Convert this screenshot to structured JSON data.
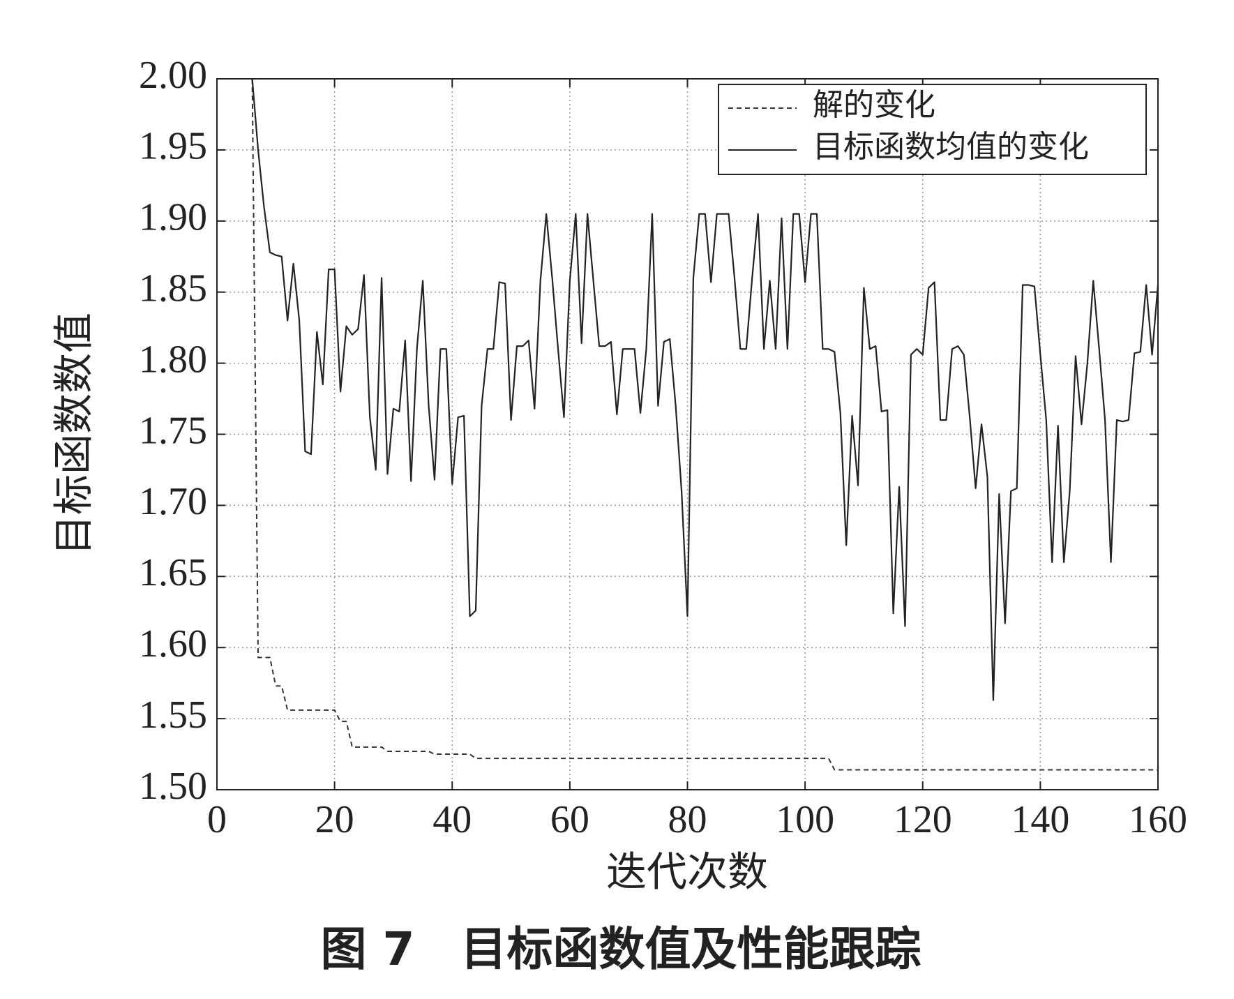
{
  "chart_data": {
    "type": "line",
    "caption": "图 7　目标函数值及性能跟踪",
    "x_label": "迭代次数",
    "y_label": "目标函数数值",
    "xlim": [
      0,
      160
    ],
    "xticks": [
      0,
      20,
      40,
      60,
      80,
      100,
      120,
      140,
      160
    ],
    "ylim": [
      1.5,
      2.0
    ],
    "yticks": [
      {
        "value": 1.5,
        "label": "1.50"
      },
      {
        "value": 1.55,
        "label": "1.55"
      },
      {
        "value": 1.6,
        "label": "1.60"
      },
      {
        "value": 1.65,
        "label": "1.65"
      },
      {
        "value": 1.7,
        "label": "1.70"
      },
      {
        "value": 1.75,
        "label": "1.75"
      },
      {
        "value": 1.8,
        "label": "1.80"
      },
      {
        "value": 1.85,
        "label": "1.85"
      },
      {
        "value": 1.9,
        "label": "1.90"
      },
      {
        "value": 1.95,
        "label": "1.95"
      },
      {
        "value": 2.0,
        "label": "2.00"
      }
    ],
    "grid": true,
    "legend": "top-right",
    "series": [
      {
        "name": "解的变化",
        "color": "#333333",
        "style": "dashed",
        "x": [
          6,
          7,
          9,
          10,
          11,
          12,
          20,
          21,
          22,
          23,
          28,
          29,
          36,
          37,
          43,
          44,
          104,
          105,
          160
        ],
        "values": [
          2.0,
          1.593,
          1.593,
          1.573,
          1.573,
          1.556,
          1.556,
          1.548,
          1.548,
          1.53,
          1.53,
          1.527,
          1.527,
          1.525,
          1.525,
          1.522,
          1.522,
          1.514,
          1.514
        ]
      },
      {
        "name": "目标函数均值的变化",
        "color": "#222222",
        "style": "solid",
        "x": [
          6,
          7,
          8,
          9,
          10,
          11,
          12,
          13,
          14,
          15,
          16,
          17,
          18,
          19,
          20,
          21,
          22,
          23,
          24,
          25,
          26,
          27,
          28,
          29,
          30,
          31,
          32,
          33,
          34,
          35,
          36,
          37,
          38,
          39,
          40,
          41,
          42,
          43,
          44,
          45,
          46,
          47,
          48,
          49,
          50,
          51,
          52,
          53,
          54,
          55,
          56,
          57,
          58,
          59,
          60,
          61,
          62,
          63,
          64,
          65,
          66,
          67,
          68,
          69,
          70,
          71,
          72,
          73,
          74,
          75,
          76,
          77,
          78,
          79,
          80,
          81,
          82,
          83,
          84,
          85,
          86,
          87,
          88,
          89,
          90,
          91,
          92,
          93,
          94,
          95,
          96,
          97,
          98,
          99,
          100,
          101,
          102,
          103,
          104,
          105,
          106,
          107,
          108,
          109,
          110,
          111,
          112,
          113,
          114,
          115,
          116,
          117,
          118,
          119,
          120,
          121,
          122,
          123,
          124,
          125,
          126,
          127,
          128,
          129,
          130,
          131,
          132,
          133,
          134,
          135,
          136,
          137,
          138,
          139,
          140,
          141,
          142,
          143,
          144,
          145,
          146,
          147,
          148,
          149,
          150,
          151,
          152,
          153,
          154,
          155,
          156,
          157,
          158,
          159,
          160
        ],
        "values": [
          2.0,
          1.95,
          1.91,
          1.878,
          1.876,
          1.875,
          1.83,
          1.87,
          1.83,
          1.738,
          1.736,
          1.822,
          1.785,
          1.866,
          1.866,
          1.78,
          1.826,
          1.82,
          1.824,
          1.862,
          1.762,
          1.725,
          1.86,
          1.722,
          1.768,
          1.766,
          1.816,
          1.717,
          1.81,
          1.858,
          1.77,
          1.718,
          1.81,
          1.81,
          1.715,
          1.762,
          1.763,
          1.622,
          1.626,
          1.77,
          1.81,
          1.81,
          1.857,
          1.856,
          1.76,
          1.812,
          1.812,
          1.816,
          1.768,
          1.858,
          1.905,
          1.86,
          1.81,
          1.762,
          1.858,
          1.905,
          1.814,
          1.905,
          1.858,
          1.812,
          1.812,
          1.815,
          1.764,
          1.81,
          1.81,
          1.81,
          1.765,
          1.81,
          1.905,
          1.77,
          1.815,
          1.817,
          1.77,
          1.71,
          1.622,
          1.86,
          1.905,
          1.905,
          1.857,
          1.905,
          1.905,
          1.905,
          1.86,
          1.81,
          1.81,
          1.86,
          1.905,
          1.81,
          1.858,
          1.81,
          1.902,
          1.81,
          1.905,
          1.905,
          1.857,
          1.905,
          1.905,
          1.81,
          1.81,
          1.808,
          1.765,
          1.672,
          1.763,
          1.714,
          1.853,
          1.81,
          1.812,
          1.766,
          1.767,
          1.624,
          1.713,
          1.615,
          1.806,
          1.81,
          1.806,
          1.853,
          1.857,
          1.76,
          1.76,
          1.81,
          1.812,
          1.806,
          1.762,
          1.712,
          1.757,
          1.72,
          1.563,
          1.708,
          1.617,
          1.71,
          1.712,
          1.855,
          1.855,
          1.854,
          1.806,
          1.76,
          1.66,
          1.756,
          1.66,
          1.71,
          1.805,
          1.757,
          1.8,
          1.858,
          1.81,
          1.76,
          1.66,
          1.76,
          1.759,
          1.76,
          1.807,
          1.808,
          1.855,
          1.806,
          1.855
        ]
      }
    ]
  }
}
